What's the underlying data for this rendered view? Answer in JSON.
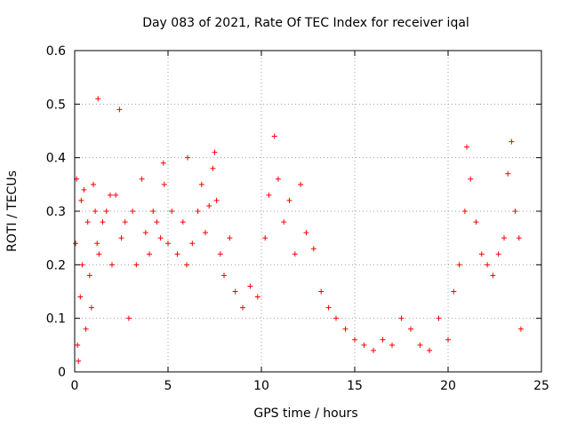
{
  "chart_data": {
    "type": "scatter",
    "title": "Day 083 of 2021, Rate Of TEC Index for receiver iqal",
    "xlabel": "GPS time / hours",
    "ylabel": "ROTI / TECUs",
    "xlim": [
      0,
      25
    ],
    "ylim": [
      0,
      0.6
    ],
    "x_ticks": [
      0,
      5,
      10,
      15,
      20,
      25
    ],
    "y_ticks": [
      0,
      0.1,
      0.2,
      0.3,
      0.4,
      0.5,
      0.6
    ],
    "x_tick_labels": [
      "0",
      "5",
      "10",
      "15",
      "20",
      "25"
    ],
    "y_tick_labels": [
      "0",
      "0.1",
      "0.2",
      "0.3",
      "0.4",
      "0.5",
      "0.6"
    ],
    "grid": true,
    "legend": "none",
    "marker": "plus",
    "series": [
      {
        "color": "#ff0000",
        "points": [
          [
            0.05,
            0.24
          ],
          [
            0.1,
            0.36
          ],
          [
            0.15,
            0.05
          ],
          [
            0.2,
            0.02
          ],
          [
            0.3,
            0.14
          ],
          [
            0.35,
            0.32
          ],
          [
            0.4,
            0.2
          ],
          [
            0.5,
            0.34
          ],
          [
            0.6,
            0.08
          ],
          [
            0.7,
            0.28
          ],
          [
            0.8,
            0.18
          ],
          [
            0.9,
            0.12
          ],
          [
            1.0,
            0.35
          ],
          [
            1.1,
            0.3
          ],
          [
            1.2,
            0.24
          ],
          [
            1.25,
            0.51
          ],
          [
            1.3,
            0.22
          ],
          [
            1.5,
            0.28
          ],
          [
            1.7,
            0.3
          ],
          [
            1.9,
            0.33
          ],
          [
            2.0,
            0.2
          ],
          [
            2.2,
            0.33
          ],
          [
            2.4,
            0.49
          ],
          [
            2.5,
            0.25
          ],
          [
            2.7,
            0.28
          ],
          [
            2.9,
            0.1
          ],
          [
            3.1,
            0.3
          ],
          [
            3.3,
            0.2
          ],
          [
            3.6,
            0.36
          ],
          [
            3.8,
            0.26
          ],
          [
            4.0,
            0.22
          ],
          [
            4.2,
            0.3
          ],
          [
            4.4,
            0.28
          ],
          [
            4.6,
            0.25
          ],
          [
            4.75,
            0.39
          ],
          [
            4.8,
            0.35
          ],
          [
            5.0,
            0.24
          ],
          [
            5.2,
            0.3
          ],
          [
            5.5,
            0.22
          ],
          [
            5.8,
            0.28
          ],
          [
            6.0,
            0.2
          ],
          [
            6.05,
            0.4
          ],
          [
            6.3,
            0.24
          ],
          [
            6.6,
            0.3
          ],
          [
            6.8,
            0.35
          ],
          [
            7.0,
            0.26
          ],
          [
            7.2,
            0.31
          ],
          [
            7.4,
            0.38
          ],
          [
            7.5,
            0.41
          ],
          [
            7.6,
            0.32
          ],
          [
            7.8,
            0.22
          ],
          [
            8.0,
            0.18
          ],
          [
            8.3,
            0.25
          ],
          [
            8.6,
            0.15
          ],
          [
            9.0,
            0.12
          ],
          [
            9.4,
            0.16
          ],
          [
            9.8,
            0.14
          ],
          [
            10.2,
            0.25
          ],
          [
            10.4,
            0.33
          ],
          [
            10.7,
            0.44
          ],
          [
            10.9,
            0.36
          ],
          [
            11.2,
            0.28
          ],
          [
            11.5,
            0.32
          ],
          [
            11.8,
            0.22
          ],
          [
            12.1,
            0.35
          ],
          [
            12.4,
            0.26
          ],
          [
            12.8,
            0.23
          ],
          [
            13.2,
            0.15
          ],
          [
            13.6,
            0.12
          ],
          [
            14.0,
            0.1
          ],
          [
            14.5,
            0.08
          ],
          [
            15.0,
            0.06
          ],
          [
            15.5,
            0.05
          ],
          [
            16.0,
            0.04
          ],
          [
            16.5,
            0.06
          ],
          [
            17.0,
            0.05
          ],
          [
            17.5,
            0.1
          ],
          [
            18.0,
            0.08
          ],
          [
            18.5,
            0.05
          ],
          [
            19.0,
            0.04
          ],
          [
            19.5,
            0.1
          ],
          [
            20.0,
            0.06
          ],
          [
            20.3,
            0.15
          ],
          [
            20.6,
            0.2
          ],
          [
            20.9,
            0.3
          ],
          [
            21.0,
            0.42
          ],
          [
            21.2,
            0.36
          ],
          [
            21.5,
            0.28
          ],
          [
            21.8,
            0.22
          ],
          [
            22.1,
            0.2
          ],
          [
            22.4,
            0.18
          ],
          [
            22.7,
            0.22
          ],
          [
            23.0,
            0.25
          ],
          [
            23.2,
            0.37
          ],
          [
            23.4,
            0.43
          ],
          [
            23.6,
            0.3
          ],
          [
            23.8,
            0.25
          ],
          [
            23.9,
            0.08
          ]
        ]
      }
    ]
  }
}
